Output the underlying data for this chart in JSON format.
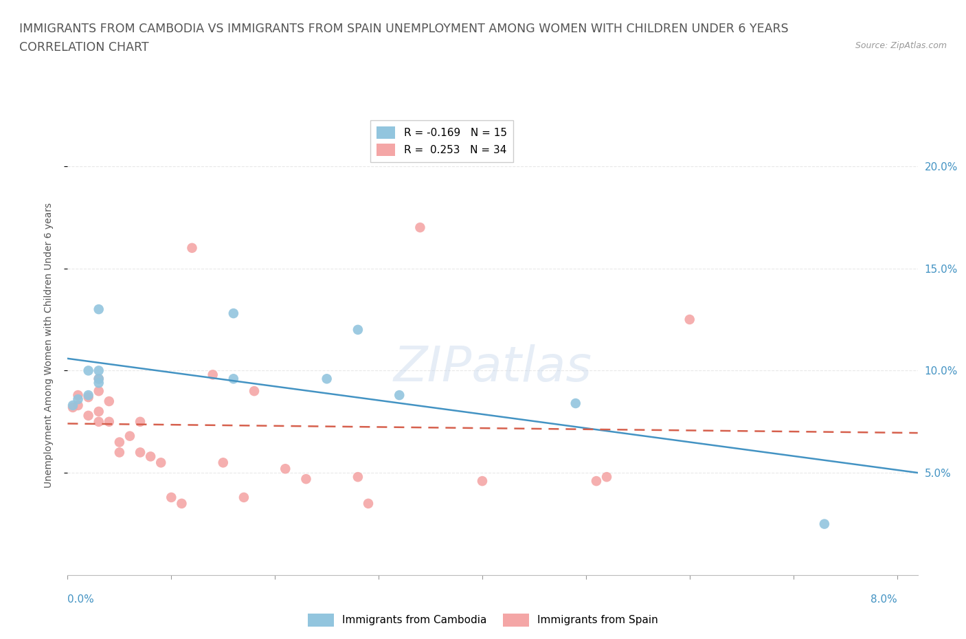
{
  "title_line1": "IMMIGRANTS FROM CAMBODIA VS IMMIGRANTS FROM SPAIN UNEMPLOYMENT AMONG WOMEN WITH CHILDREN UNDER 6 YEARS",
  "title_line2": "CORRELATION CHART",
  "source": "Source: ZipAtlas.com",
  "ylabel": "Unemployment Among Women with Children Under 6 years",
  "y_tick_labels_right": [
    "5.0%",
    "10.0%",
    "15.0%",
    "20.0%"
  ],
  "y_ticks_right": [
    0.05,
    0.1,
    0.15,
    0.2
  ],
  "cambodia_R": -0.169,
  "cambodia_N": 15,
  "spain_R": 0.253,
  "spain_N": 34,
  "cambodia_color": "#92c5de",
  "spain_color": "#f4a6a6",
  "cambodia_line_color": "#4393c3",
  "spain_line_color": "#d6604d",
  "background_color": "#ffffff",
  "grid_color": "#e8e8e8",
  "xlim": [
    0.0,
    0.082
  ],
  "ylim": [
    0.0,
    0.225
  ],
  "cambodia_x": [
    0.0005,
    0.001,
    0.002,
    0.002,
    0.003,
    0.003,
    0.003,
    0.003,
    0.016,
    0.016,
    0.025,
    0.028,
    0.032,
    0.049,
    0.073
  ],
  "cambodia_y": [
    0.083,
    0.086,
    0.088,
    0.1,
    0.094,
    0.096,
    0.1,
    0.13,
    0.128,
    0.096,
    0.096,
    0.12,
    0.088,
    0.084,
    0.025
  ],
  "spain_x": [
    0.0005,
    0.001,
    0.001,
    0.002,
    0.002,
    0.003,
    0.003,
    0.003,
    0.003,
    0.004,
    0.004,
    0.005,
    0.005,
    0.006,
    0.007,
    0.007,
    0.008,
    0.009,
    0.01,
    0.011,
    0.012,
    0.014,
    0.015,
    0.017,
    0.018,
    0.021,
    0.023,
    0.028,
    0.029,
    0.034,
    0.04,
    0.051,
    0.052,
    0.06
  ],
  "spain_y": [
    0.082,
    0.083,
    0.088,
    0.078,
    0.087,
    0.075,
    0.08,
    0.09,
    0.096,
    0.075,
    0.085,
    0.06,
    0.065,
    0.068,
    0.06,
    0.075,
    0.058,
    0.055,
    0.038,
    0.035,
    0.16,
    0.098,
    0.055,
    0.038,
    0.09,
    0.052,
    0.047,
    0.048,
    0.035,
    0.17,
    0.046,
    0.046,
    0.048,
    0.125
  ]
}
